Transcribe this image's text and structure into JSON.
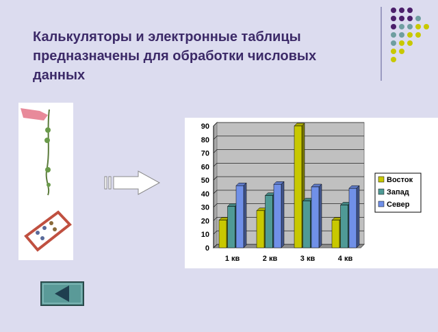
{
  "slide": {
    "title_lines": [
      "Калькуляторы и электронные таблицы",
      "предназначены для обработки числовых",
      "данных"
    ]
  },
  "chart_data": {
    "type": "bar3d",
    "categories": [
      "1 кв",
      "2 кв",
      "3 кв",
      "4 кв"
    ],
    "series": [
      {
        "name": "Восток",
        "color": "#c8c800",
        "values": [
          20.4,
          27.4,
          90,
          20.4
        ]
      },
      {
        "name": "Запад",
        "color": "#4f9a96",
        "values": [
          30.6,
          38.6,
          34.6,
          31.6
        ]
      },
      {
        "name": "Север",
        "color": "#7090e8",
        "values": [
          45.9,
          46.9,
          45,
          43.9
        ]
      }
    ],
    "ylim": [
      0,
      90
    ],
    "yticks": [
      0,
      10,
      20,
      30,
      40,
      50,
      60,
      70,
      80,
      90
    ],
    "grid": true,
    "legend": "right"
  }
}
